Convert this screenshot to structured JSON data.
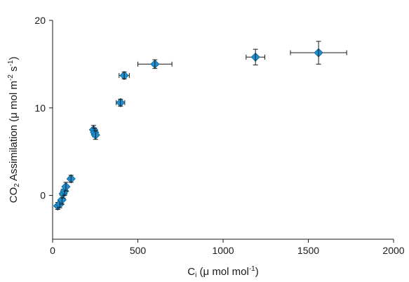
{
  "chart_data": {
    "type": "scatter",
    "title": "",
    "xlabel": {
      "main": "C",
      "sub": "i",
      "rest": " (μ mol mol",
      "sup": "-1",
      "end": ")"
    },
    "ylabel": {
      "a": "CO",
      "sub": "2",
      "b": " Assimilation (μ mol m",
      "sup1": "-2",
      "c": " s",
      "sup2": "-1",
      "d": ")"
    },
    "xlim": [
      0,
      2000
    ],
    "ylim": [
      -5,
      20
    ],
    "xticks": [
      0,
      500,
      1000,
      1500,
      2000
    ],
    "yticks": [
      0,
      10,
      20
    ],
    "grid": false,
    "marker_color": "#1e8fd0",
    "marker_edge_color": "#0d5f8f",
    "errorbar_color": "#1a1a1a",
    "points": [
      {
        "x": 30,
        "y": -1.2,
        "xerr": 5,
        "yerr": 0.4
      },
      {
        "x": 42,
        "y": -1.0,
        "xerr": 5,
        "yerr": 0.4
      },
      {
        "x": 55,
        "y": -0.5,
        "xerr": 5,
        "yerr": 0.5
      },
      {
        "x": 62,
        "y": 0.2,
        "xerr": 6,
        "yerr": 0.5
      },
      {
        "x": 70,
        "y": 0.5,
        "xerr": 6,
        "yerr": 0.5
      },
      {
        "x": 78,
        "y": 1.0,
        "xerr": 7,
        "yerr": 0.5
      },
      {
        "x": 108,
        "y": 1.9,
        "xerr": 10,
        "yerr": 0.4
      },
      {
        "x": 240,
        "y": 7.5,
        "xerr": 10,
        "yerr": 0.5
      },
      {
        "x": 246,
        "y": 7.2,
        "xerr": 10,
        "yerr": 0.5
      },
      {
        "x": 252,
        "y": 6.9,
        "xerr": 10,
        "yerr": 0.5
      },
      {
        "x": 398,
        "y": 10.6,
        "xerr": 25,
        "yerr": 0.4
      },
      {
        "x": 420,
        "y": 13.7,
        "xerr": 30,
        "yerr": 0.4
      },
      {
        "x": 600,
        "y": 15.0,
        "xerr": 100,
        "yerr": 0.5
      },
      {
        "x": 1190,
        "y": 15.8,
        "xerr": 55,
        "yerr": 0.9
      },
      {
        "x": 1560,
        "y": 16.3,
        "xerr": 165,
        "yerr": 1.3
      }
    ]
  }
}
